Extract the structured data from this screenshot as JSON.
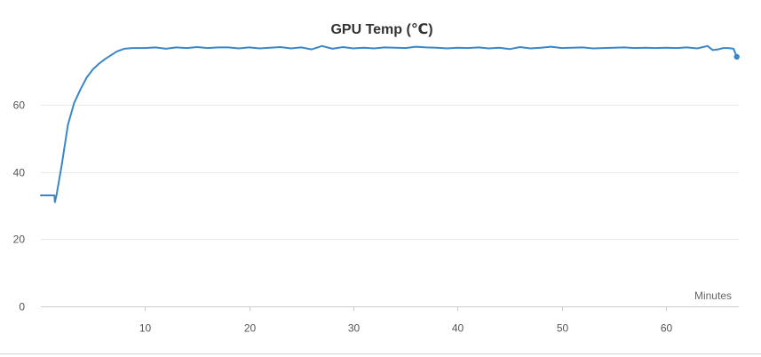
{
  "chart_data": {
    "type": "line",
    "title": "GPU Temp (℃)",
    "xlabel": "Minutes",
    "ylabel": "",
    "xlim": [
      0,
      67
    ],
    "ylim": [
      0,
      80
    ],
    "x_ticks": [
      10,
      20,
      30,
      40,
      50,
      60
    ],
    "y_ticks": [
      0,
      20,
      40,
      60
    ],
    "grid": true,
    "series": [
      {
        "color": "#3a87c8",
        "points": [
          [
            0,
            33
          ],
          [
            1.3,
            33
          ],
          [
            1.35,
            31
          ],
          [
            1.5,
            33
          ],
          [
            2,
            42
          ],
          [
            2.6,
            54
          ],
          [
            3.2,
            60.5
          ],
          [
            3.8,
            64.5
          ],
          [
            4.4,
            68
          ],
          [
            5,
            70.5
          ],
          [
            5.6,
            72.2
          ],
          [
            6.2,
            73.6
          ],
          [
            6.8,
            74.8
          ],
          [
            7.3,
            75.8
          ],
          [
            8,
            76.6
          ],
          [
            8.8,
            76.8
          ],
          [
            10,
            76.8
          ],
          [
            11,
            77
          ],
          [
            12,
            76.6
          ],
          [
            13,
            77
          ],
          [
            14,
            76.8
          ],
          [
            15,
            77.1
          ],
          [
            16,
            76.8
          ],
          [
            17,
            77
          ],
          [
            18,
            77
          ],
          [
            19,
            76.7
          ],
          [
            20,
            77
          ],
          [
            21,
            76.7
          ],
          [
            22,
            76.9
          ],
          [
            23,
            77.1
          ],
          [
            24,
            76.7
          ],
          [
            25,
            77
          ],
          [
            26,
            76.4
          ],
          [
            27,
            77.4
          ],
          [
            28,
            76.6
          ],
          [
            29,
            77.1
          ],
          [
            30,
            76.7
          ],
          [
            31,
            76.9
          ],
          [
            32,
            76.7
          ],
          [
            33,
            77
          ],
          [
            34,
            76.9
          ],
          [
            35,
            76.8
          ],
          [
            36,
            77.2
          ],
          [
            37,
            77
          ],
          [
            38,
            76.9
          ],
          [
            39,
            76.7
          ],
          [
            40,
            76.9
          ],
          [
            41,
            76.8
          ],
          [
            42,
            77
          ],
          [
            43,
            76.7
          ],
          [
            44,
            76.9
          ],
          [
            45,
            76.5
          ],
          [
            46,
            77.1
          ],
          [
            47,
            76.7
          ],
          [
            48,
            76.9
          ],
          [
            49,
            77.2
          ],
          [
            50,
            76.8
          ],
          [
            51,
            76.9
          ],
          [
            52,
            77
          ],
          [
            53,
            76.7
          ],
          [
            54,
            76.8
          ],
          [
            55,
            76.9
          ],
          [
            56,
            77
          ],
          [
            57,
            76.8
          ],
          [
            58,
            76.9
          ],
          [
            59,
            76.8
          ],
          [
            60,
            76.9
          ],
          [
            61,
            76.8
          ],
          [
            62,
            77
          ],
          [
            63,
            76.7
          ],
          [
            64,
            77.4
          ],
          [
            64.5,
            76.2
          ],
          [
            65,
            76.4
          ],
          [
            65.5,
            76.8
          ],
          [
            66,
            76.8
          ],
          [
            66.5,
            76.6
          ],
          [
            66.8,
            74.2
          ]
        ]
      }
    ]
  }
}
